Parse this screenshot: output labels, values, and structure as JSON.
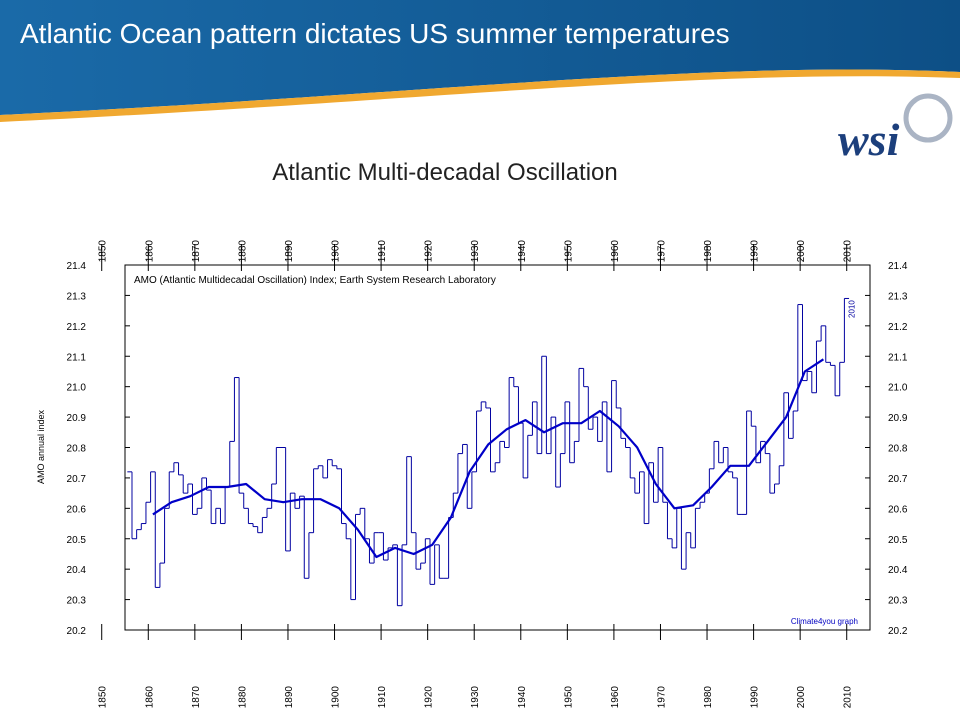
{
  "header": {
    "title": "Atlantic Ocean pattern dictates US summer temperatures",
    "logo": "wsi"
  },
  "chart_data": {
    "type": "line",
    "title": "Atlantic Multi-decadal Oscillation",
    "annotation": "AMO (Atlantic Multidecadal Oscillation) Index; Earth System Research Laboratory",
    "end_label": "2010",
    "credit": "Climate4you graph",
    "ylabel": "AMO annual index",
    "xlim": [
      1855,
      2015
    ],
    "xticks": [
      1850,
      1860,
      1870,
      1880,
      1890,
      1900,
      1910,
      1920,
      1930,
      1940,
      1950,
      1960,
      1970,
      1980,
      1990,
      2000,
      2010
    ],
    "ylim": [
      20.2,
      21.4
    ],
    "yticks": [
      20.2,
      20.3,
      20.4,
      20.5,
      20.6,
      20.7,
      20.8,
      20.9,
      {
        "value": 21,
        "label": "21.0"
      },
      21.1,
      21.2,
      21.3,
      21.4
    ],
    "series": [
      {
        "style": "step",
        "color": "#0000a0",
        "x": [
          1856,
          1857,
          1858,
          1859,
          1860,
          1861,
          1862,
          1863,
          1864,
          1865,
          1866,
          1867,
          1868,
          1869,
          1870,
          1871,
          1872,
          1873,
          1874,
          1875,
          1876,
          1877,
          1878,
          1879,
          1880,
          1881,
          1882,
          1883,
          1884,
          1885,
          1886,
          1887,
          1888,
          1889,
          1890,
          1891,
          1892,
          1893,
          1894,
          1895,
          1896,
          1897,
          1898,
          1899,
          1900,
          1901,
          1902,
          1903,
          1904,
          1905,
          1906,
          1907,
          1908,
          1909,
          1910,
          1911,
          1912,
          1913,
          1914,
          1915,
          1916,
          1917,
          1918,
          1919,
          1920,
          1921,
          1922,
          1923,
          1924,
          1925,
          1926,
          1927,
          1928,
          1929,
          1930,
          1931,
          1932,
          1933,
          1934,
          1935,
          1936,
          1937,
          1938,
          1939,
          1940,
          1941,
          1942,
          1943,
          1944,
          1945,
          1946,
          1947,
          1948,
          1949,
          1950,
          1951,
          1952,
          1953,
          1954,
          1955,
          1956,
          1957,
          1958,
          1959,
          1960,
          1961,
          1962,
          1963,
          1964,
          1965,
          1966,
          1967,
          1968,
          1969,
          1970,
          1971,
          1972,
          1973,
          1974,
          1975,
          1976,
          1977,
          1978,
          1979,
          1980,
          1981,
          1982,
          1983,
          1984,
          1985,
          1986,
          1987,
          1988,
          1989,
          1990,
          1991,
          1992,
          1993,
          1994,
          1995,
          1996,
          1997,
          1998,
          1999,
          2000,
          2001,
          2002,
          2003,
          2004,
          2005,
          2006,
          2007,
          2008,
          2009,
          2010
        ],
        "values": [
          20.72,
          20.5,
          20.53,
          20.55,
          20.62,
          20.72,
          20.34,
          20.42,
          20.6,
          20.72,
          20.75,
          20.71,
          20.65,
          20.68,
          20.58,
          20.6,
          20.7,
          20.66,
          20.55,
          20.6,
          20.55,
          20.67,
          20.82,
          21.03,
          20.65,
          20.6,
          20.55,
          20.54,
          20.52,
          20.57,
          20.6,
          20.68,
          20.8,
          20.8,
          20.46,
          20.65,
          20.6,
          20.64,
          20.37,
          20.52,
          20.73,
          20.74,
          20.7,
          20.76,
          20.74,
          20.73,
          20.55,
          20.5,
          20.3,
          20.58,
          20.6,
          20.5,
          20.42,
          20.52,
          20.52,
          20.43,
          20.47,
          20.48,
          20.28,
          20.48,
          20.77,
          20.52,
          20.4,
          20.42,
          20.5,
          20.35,
          20.48,
          20.37,
          20.37,
          20.57,
          20.65,
          20.78,
          20.81,
          20.6,
          20.72,
          20.92,
          20.95,
          20.93,
          20.72,
          20.75,
          20.82,
          20.8,
          21.03,
          21.0,
          20.88,
          20.7,
          20.84,
          20.95,
          20.78,
          21.1,
          20.78,
          20.9,
          20.67,
          20.78,
          20.95,
          20.75,
          20.82,
          21.06,
          21.0,
          20.86,
          20.9,
          20.82,
          20.95,
          20.72,
          21.02,
          20.93,
          20.83,
          20.8,
          20.7,
          20.65,
          20.72,
          20.55,
          20.75,
          20.62,
          20.8,
          20.62,
          20.5,
          20.47,
          20.6,
          20.4,
          20.52,
          20.47,
          20.6,
          20.62,
          20.65,
          20.73,
          20.82,
          20.75,
          20.8,
          20.72,
          20.7,
          20.58,
          20.58,
          20.92,
          20.87,
          20.75,
          20.82,
          20.78,
          20.65,
          20.68,
          20.74,
          20.98,
          20.83,
          20.92,
          21.27,
          21.02,
          21.05,
          20.98,
          21.15,
          21.2,
          21.08,
          21.07,
          20.97,
          21.08,
          21.29
        ]
      },
      {
        "style": "smooth",
        "color": "#0000c8",
        "x": [
          1861,
          1865,
          1869,
          1873,
          1877,
          1881,
          1885,
          1889,
          1893,
          1897,
          1901,
          1905,
          1909,
          1913,
          1917,
          1921,
          1925,
          1929,
          1933,
          1937,
          1941,
          1945,
          1949,
          1953,
          1957,
          1961,
          1965,
          1969,
          1973,
          1977,
          1981,
          1985,
          1989,
          1993,
          1997,
          2001,
          2005
        ],
        "values": [
          20.58,
          20.62,
          20.64,
          20.67,
          20.67,
          20.68,
          20.63,
          20.62,
          20.63,
          20.63,
          20.6,
          20.53,
          20.44,
          20.47,
          20.45,
          20.48,
          20.57,
          20.72,
          20.81,
          20.86,
          20.89,
          20.85,
          20.88,
          20.88,
          20.92,
          20.87,
          20.8,
          20.68,
          20.6,
          20.61,
          20.67,
          20.74,
          20.74,
          20.82,
          20.9,
          21.05,
          21.09
        ]
      }
    ]
  }
}
